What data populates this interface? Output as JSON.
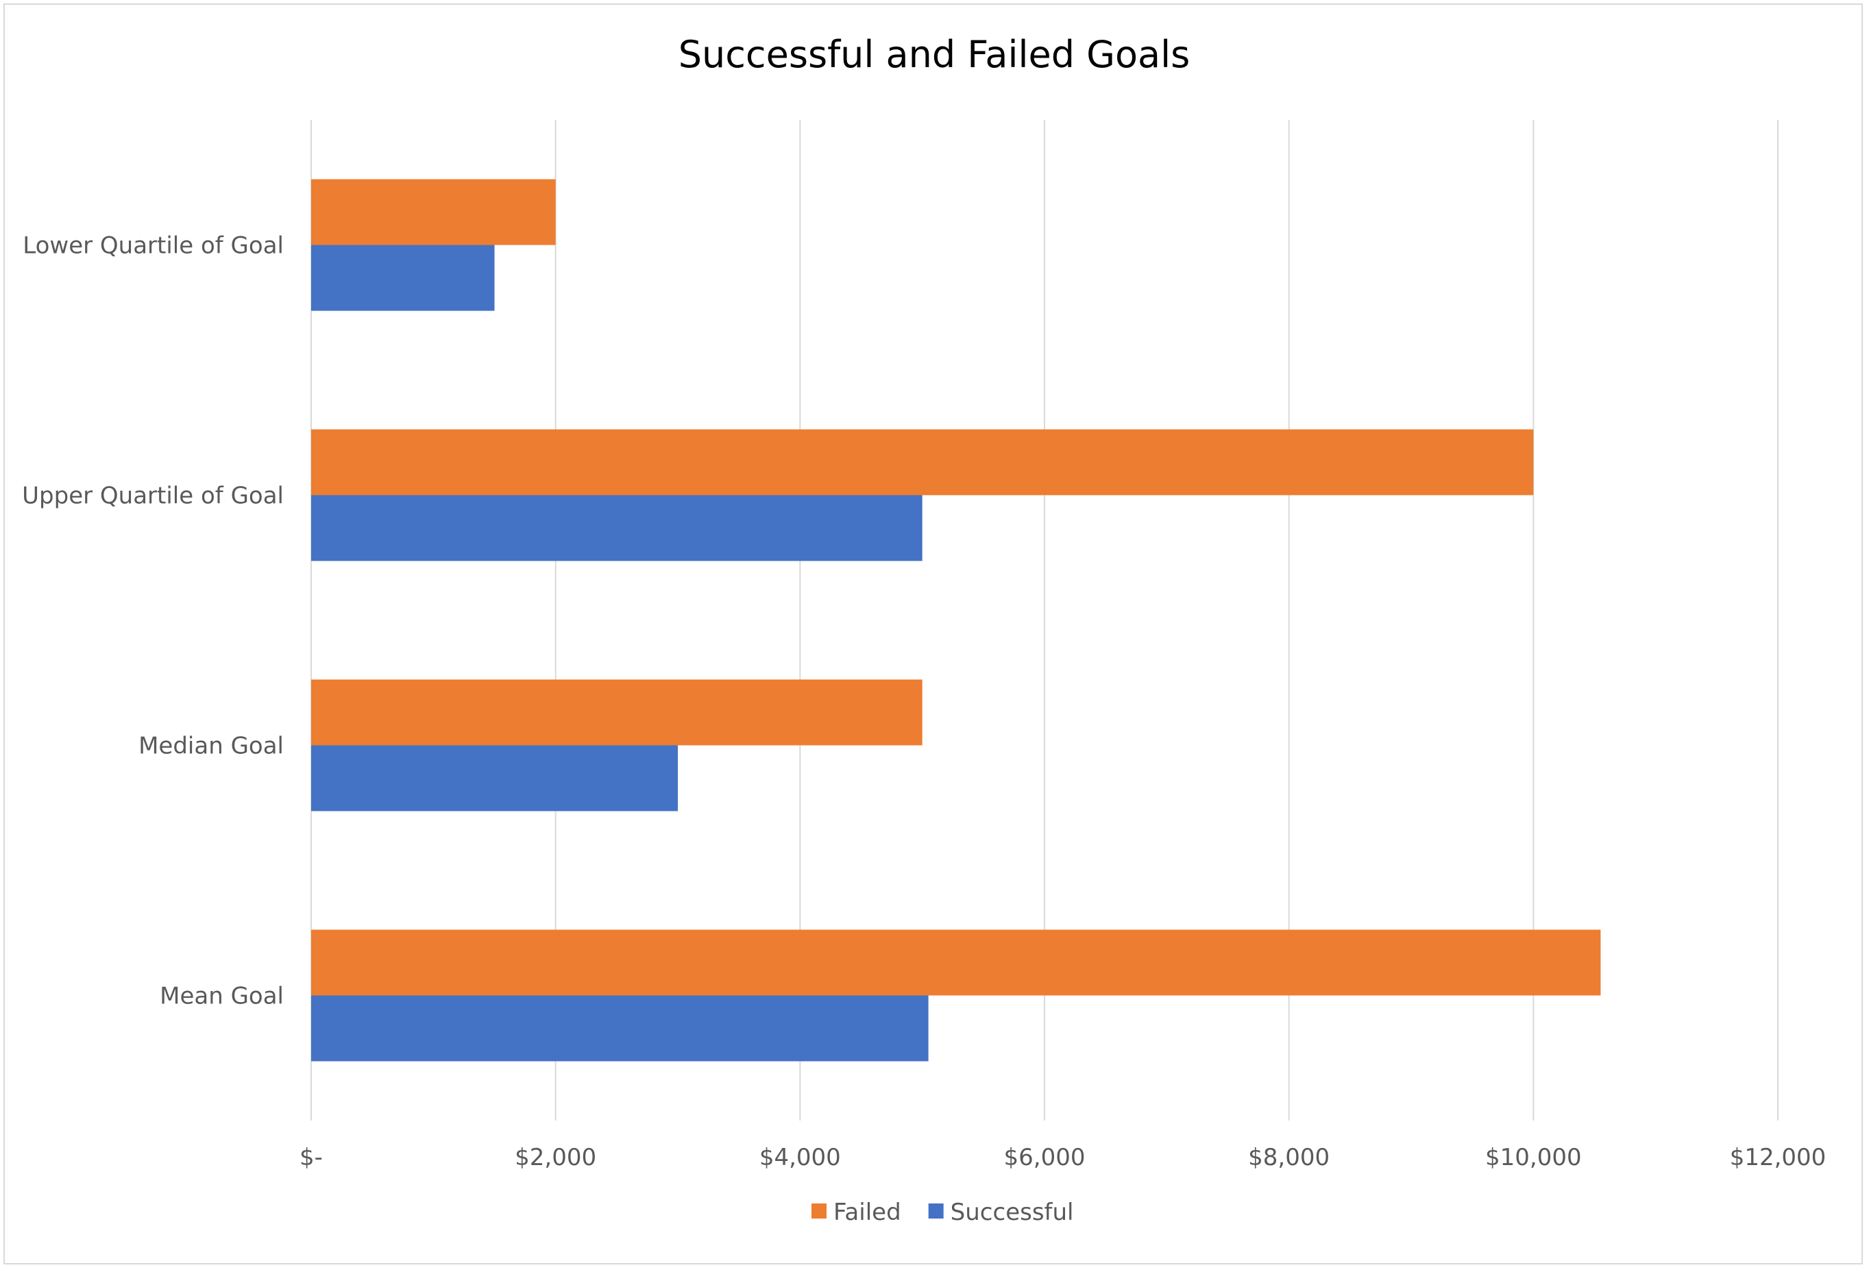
{
  "chart_data": {
    "type": "bar",
    "orientation": "horizontal",
    "title": "Successful and Failed Goals",
    "categories": [
      "Lower Quartile of Goal",
      "Upper Quartile of Goal",
      "Median Goal",
      "Mean Goal"
    ],
    "series": [
      {
        "name": "Failed",
        "color": "#ED7D31",
        "values": [
          2000,
          10000,
          5000,
          10550
        ]
      },
      {
        "name": "Successful",
        "color": "#4472C4",
        "values": [
          1500,
          5000,
          3000,
          5050
        ]
      }
    ],
    "xlim": [
      0,
      12000
    ],
    "x_ticks": [
      {
        "value": 0,
        "label": "$-"
      },
      {
        "value": 2000,
        "label": "$2,000"
      },
      {
        "value": 4000,
        "label": "$4,000"
      },
      {
        "value": 6000,
        "label": "$6,000"
      },
      {
        "value": 8000,
        "label": "$8,000"
      },
      {
        "value": 10000,
        "label": "$10,000"
      },
      {
        "value": 12000,
        "label": "$12,000"
      }
    ],
    "grid": true,
    "legend": "bottom",
    "legend_order": [
      "Failed",
      "Successful"
    ]
  }
}
